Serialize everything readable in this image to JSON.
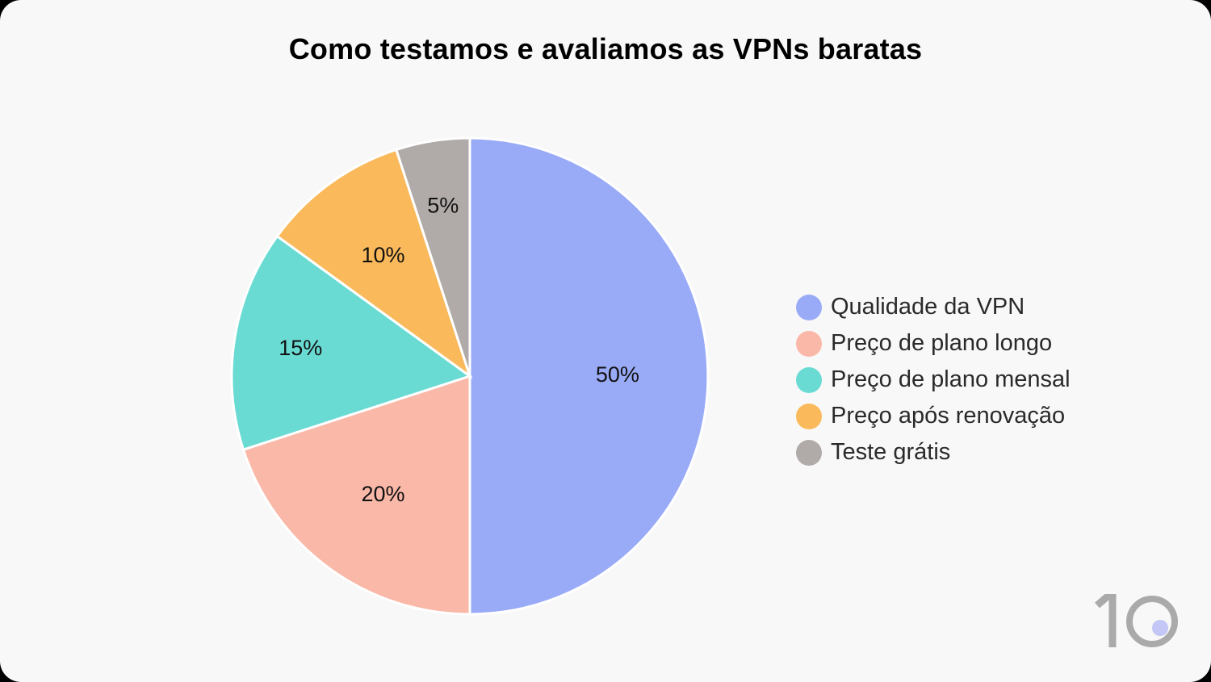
{
  "chart_data": {
    "type": "pie",
    "title": "Como testamos e avaliamos as VPNs baratas",
    "categories": [
      "Qualidade da VPN",
      "Preço de plano longo",
      "Preço de plano mensal",
      "Preço após renovação",
      "Teste grátis"
    ],
    "values": [
      50,
      20,
      15,
      10,
      5
    ],
    "labels": [
      "50%",
      "20%",
      "15%",
      "10%",
      "5%"
    ],
    "colors": [
      "#99abf7",
      "#f9b8a8",
      "#69dbd3",
      "#fab95b",
      "#b0aba9"
    ],
    "legend_position": "right"
  },
  "logo": {
    "text": "10",
    "dot_color": "#c4c6f5"
  }
}
